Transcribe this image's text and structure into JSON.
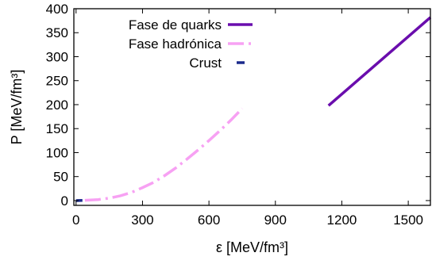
{
  "chart_data": {
    "type": "line",
    "xlabel": "ε [MeV/fm³]",
    "ylabel": "P [MeV/fm³]",
    "xlim": [
      -10,
      1600
    ],
    "ylim": [
      -10,
      400
    ],
    "x_ticks": [
      0,
      300,
      600,
      900,
      1200,
      1500
    ],
    "y_ticks": [
      0,
      50,
      100,
      150,
      200,
      250,
      300,
      350,
      400
    ],
    "grid": false,
    "legend_position": "top-center",
    "series": [
      {
        "name": "Fase de quarks",
        "color": "#6a0dad",
        "style": "solid",
        "points": [
          [
            1140,
            198
          ],
          [
            1600,
            382
          ]
        ]
      },
      {
        "name": "Fase hadrónica",
        "color": "#f7a1f3",
        "style": "dash-dot",
        "points": [
          [
            40,
            0.5
          ],
          [
            100,
            2
          ],
          [
            150,
            5
          ],
          [
            200,
            10
          ],
          [
            250,
            17
          ],
          [
            300,
            27
          ],
          [
            350,
            38
          ],
          [
            400,
            52
          ],
          [
            450,
            68
          ],
          [
            500,
            86
          ],
          [
            550,
            105
          ],
          [
            600,
            125
          ],
          [
            650,
            146
          ],
          [
            700,
            168
          ],
          [
            750,
            192
          ]
        ]
      },
      {
        "name": "Crust",
        "color": "#1a2a8c",
        "style": "dashed",
        "points": [
          [
            0,
            0
          ],
          [
            35,
            0.4
          ]
        ]
      }
    ]
  }
}
